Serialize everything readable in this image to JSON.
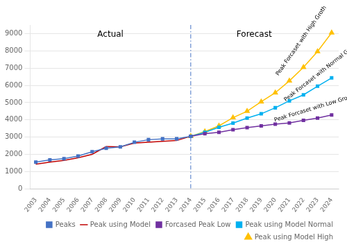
{
  "chart_data": {
    "type": "line",
    "series": [
      {
        "name": "Peaks",
        "color": "#4472C4",
        "marker": "square",
        "x": [
          2003,
          2004,
          2005,
          2006,
          2007,
          2008,
          2009,
          2010,
          2011,
          2012,
          2013,
          2014
        ],
        "values": [
          1550,
          1680,
          1750,
          1900,
          2150,
          2350,
          2430,
          2700,
          2850,
          2900,
          2900,
          3050
        ]
      },
      {
        "name": "Peak using Model",
        "color": "#C00000",
        "x": [
          2003,
          2004,
          2005,
          2006,
          2007,
          2008,
          2009,
          2010,
          2011,
          2012,
          2013,
          2014
        ],
        "values": [
          1430,
          1550,
          1650,
          1800,
          2000,
          2450,
          2430,
          2650,
          2700,
          2750,
          2800,
          3050
        ]
      },
      {
        "name": "Forcased Peak Low",
        "color": "#7030A0",
        "marker": "square",
        "x": [
          2014,
          2015,
          2016,
          2017,
          2018,
          2019,
          2020,
          2021,
          2022,
          2023,
          2024
        ],
        "values": [
          3050,
          3200,
          3280,
          3430,
          3550,
          3650,
          3750,
          3820,
          3970,
          4100,
          4280
        ]
      },
      {
        "name": "Peak using Model Normal",
        "color": "#00B0F0",
        "marker": "square",
        "x": [
          2014,
          2015,
          2016,
          2017,
          2018,
          2019,
          2020,
          2021,
          2022,
          2023,
          2024
        ],
        "values": [
          3050,
          3280,
          3570,
          3810,
          4100,
          4350,
          4700,
          5100,
          5450,
          5950,
          6430
        ]
      },
      {
        "name": "Peak using Model High",
        "color": "#FFC000",
        "marker": "triangle",
        "x": [
          2014,
          2015,
          2016,
          2017,
          2018,
          2019,
          2020,
          2021,
          2022,
          2023,
          2024
        ],
        "values": [
          3050,
          3320,
          3650,
          4130,
          4500,
          5050,
          5570,
          6260,
          7050,
          7960,
          9050
        ]
      }
    ],
    "vlines": [
      {
        "x": 2014,
        "color": "#4472C4",
        "line_style": "dashdot"
      }
    ],
    "annotations": [
      {
        "text": "Actual",
        "x": 2008.3,
        "y": 9200
      },
      {
        "text": "Forecast",
        "x": 2018.5,
        "y": 9200
      },
      {
        "text": "Peak Forcaset with High Groth",
        "x": 2020.3,
        "y": 6500
      },
      {
        "text": "Peak Forcaset with Normal Groth",
        "x": 2020.8,
        "y": 5000
      },
      {
        "text": "Peak Forcaset with Low Groth",
        "x": 2020.0,
        "y": 3820
      }
    ],
    "xlim": [
      2002.6,
      2024.5
    ],
    "xticks": [
      2003,
      2004,
      2005,
      2006,
      2007,
      2008,
      2009,
      2010,
      2011,
      2012,
      2013,
      2014,
      2015,
      2016,
      2017,
      2018,
      2019,
      2020,
      2021,
      2022,
      2023,
      2024
    ],
    "ylim": [
      0,
      9500
    ],
    "yticks": [
      0,
      1000,
      2000,
      3000,
      4000,
      5000,
      6000,
      7000,
      8000,
      9000
    ],
    "grid": "y",
    "legend": "lower right"
  }
}
